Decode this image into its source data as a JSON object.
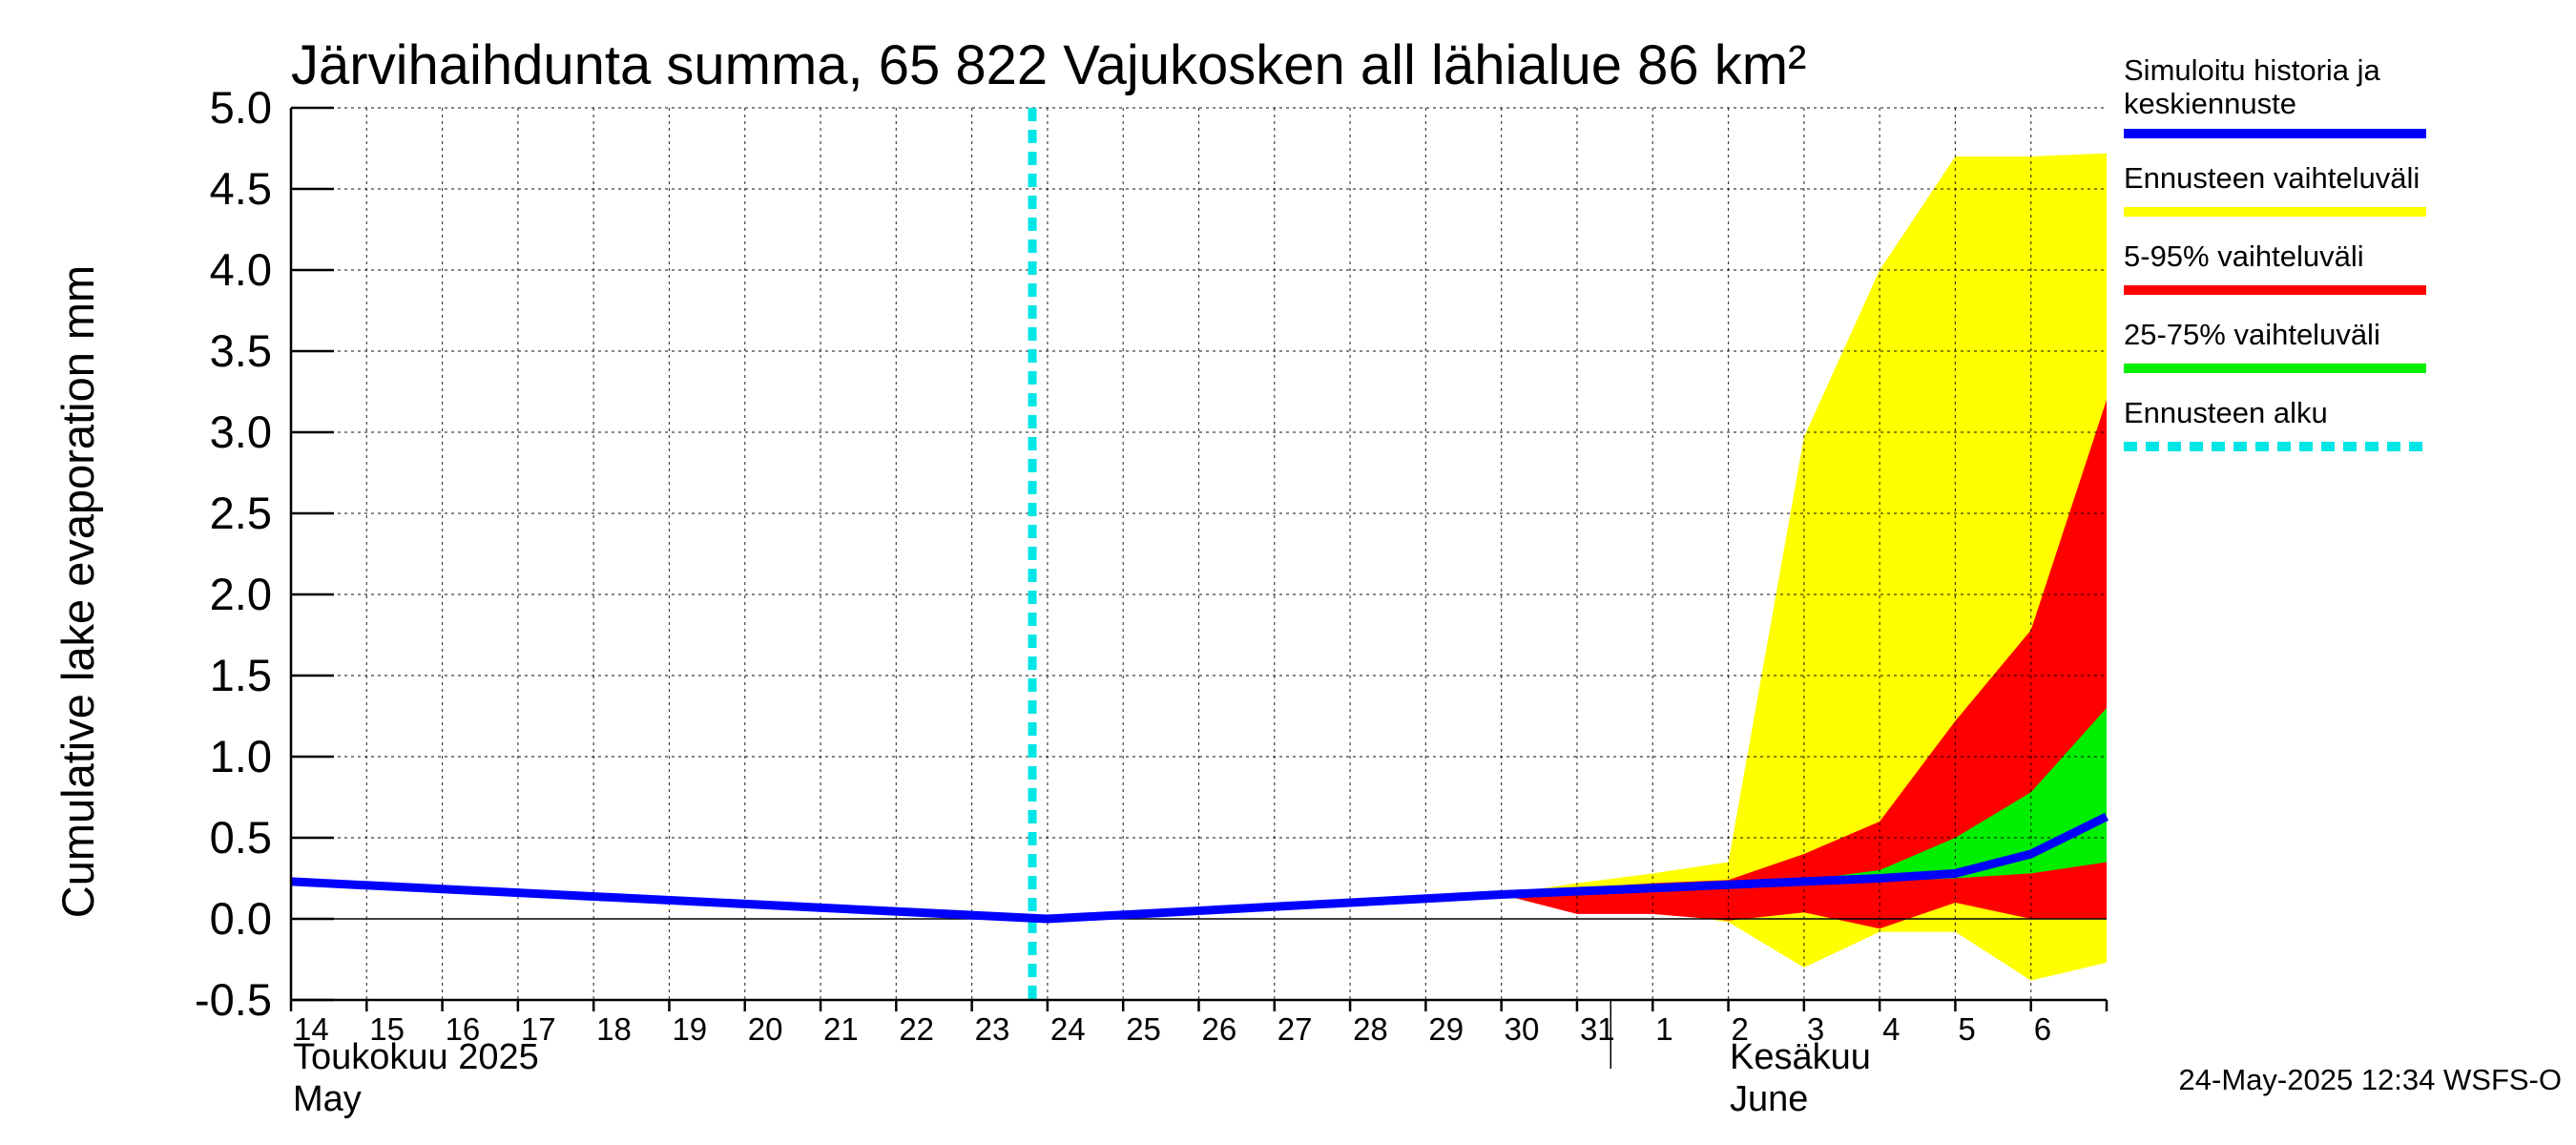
{
  "chart_data": {
    "type": "area",
    "title": "Järvihaihdunta summa, 65 822 Vajukosken all lähialue 86 km²",
    "ylabel": "Cumulative lake evaporation   mm",
    "ylim": [
      -0.5,
      5.0
    ],
    "yticks": [
      "5.0",
      "4.5",
      "4.0",
      "3.5",
      "3.0",
      "2.5",
      "2.0",
      "1.5",
      "1.0",
      "0.5",
      "0.0",
      "-0.5"
    ],
    "ytick_values": [
      5.0,
      4.5,
      4.0,
      3.5,
      3.0,
      2.5,
      2.0,
      1.5,
      1.0,
      0.5,
      0.0,
      -0.5
    ],
    "x_day_start": 14,
    "x_day_end": 38,
    "xtick_labels": [
      "14",
      "15",
      "16",
      "17",
      "18",
      "19",
      "20",
      "21",
      "22",
      "23",
      "24",
      "25",
      "26",
      "27",
      "28",
      "29",
      "30",
      "31",
      "1",
      "2",
      "3",
      "4",
      "5",
      "6"
    ],
    "month_labels": {
      "may_fi": "Toukokuu  2025",
      "may_en": "May",
      "june_fi": "Kesäkuu",
      "june_en": "June"
    },
    "grid": true,
    "forecast_start_day": 23.8,
    "series": [
      {
        "name": "Simuloitu historia ja keskiennuste",
        "color": "#0000ff",
        "x": [
          14,
          24,
          30,
          32,
          33,
          34,
          35,
          36,
          37,
          38
        ],
        "y": [
          0.23,
          0.0,
          0.15,
          0.19,
          0.21,
          0.23,
          0.25,
          0.28,
          0.4,
          0.63
        ]
      }
    ],
    "bands": [
      {
        "name": "Ennusteen vaihteluväli",
        "color": "#ffff00",
        "x": [
          30,
          31,
          32,
          33,
          34,
          35,
          36,
          37,
          38
        ],
        "upper": [
          0.15,
          0.22,
          0.28,
          0.35,
          2.97,
          4.0,
          4.7,
          4.7,
          4.72
        ],
        "lower": [
          0.15,
          0.05,
          0.05,
          -0.02,
          -0.3,
          -0.08,
          -0.08,
          -0.38,
          -0.27
        ]
      },
      {
        "name": "5-95% vaihteluväli",
        "color": "#ff0000",
        "x": [
          30,
          31,
          32,
          33,
          34,
          35,
          36,
          37,
          38
        ],
        "upper": [
          0.15,
          0.19,
          0.22,
          0.24,
          0.4,
          0.6,
          1.22,
          1.78,
          3.2
        ],
        "lower": [
          0.15,
          0.03,
          0.03,
          -0.01,
          0.04,
          -0.06,
          0.1,
          0.0,
          0.0
        ]
      },
      {
        "name": "25-75% vaihteluväli",
        "color": "#00ee00",
        "x": [
          33,
          34,
          35,
          36,
          37,
          38
        ],
        "upper": [
          0.23,
          0.24,
          0.3,
          0.5,
          0.78,
          1.3
        ],
        "lower": [
          0.21,
          0.22,
          0.23,
          0.25,
          0.28,
          0.35
        ]
      }
    ],
    "legend": [
      {
        "label": "Simuloitu historia ja",
        "label2": "keskiennuste",
        "color": "#0000ff",
        "style": "solid"
      },
      {
        "label": "Ennusteen vaihteluväli",
        "label2": "",
        "color": "#ffff00",
        "style": "solid"
      },
      {
        "label": "5-95% vaihteluväli",
        "label2": "",
        "color": "#ff0000",
        "style": "solid"
      },
      {
        "label": "25-75% vaihteluväli",
        "label2": "",
        "color": "#00ee00",
        "style": "solid"
      },
      {
        "label": "Ennusteen alku",
        "label2": "",
        "color": "#00e5e5",
        "style": "dashed"
      }
    ],
    "legend_position": "right",
    "footer": "24-May-2025 12:34 WSFS-O"
  }
}
